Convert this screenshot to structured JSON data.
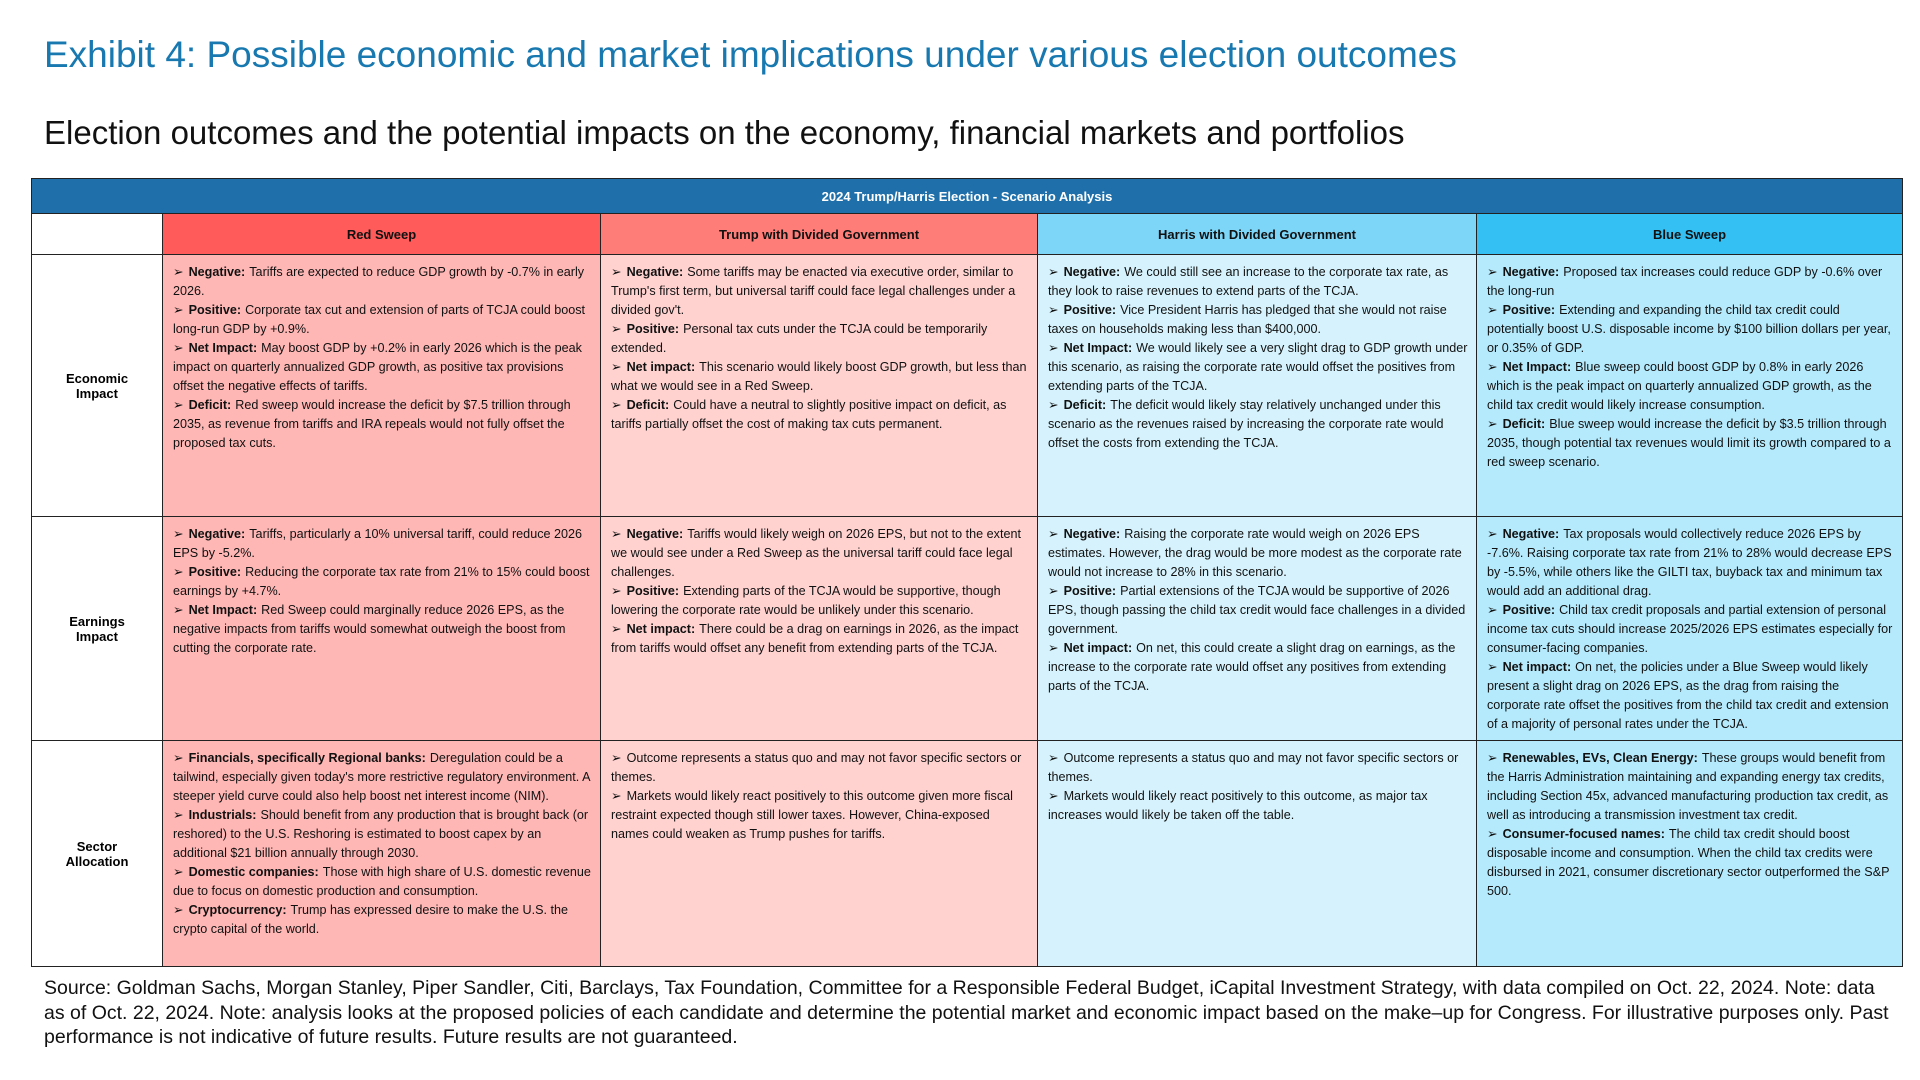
{
  "header": {
    "title": "Exhibit 4: Possible economic and market implications under various election outcomes",
    "subtitle": "Election outcomes and the potential impacts on the economy, financial markets and portfolios"
  },
  "table": {
    "caption": "2024 Trump/Harris Election - Scenario Analysis",
    "columns": [
      "Red Sweep",
      "Trump with Divided Government",
      "Harris with Divided Government",
      "Blue Sweep"
    ],
    "rows": [
      {
        "label": "Economic Impact",
        "cells": [
          [
            {
              "label": "Negative:",
              "text": "Tariffs are expected to reduce GDP growth by -0.7% in early 2026."
            },
            {
              "label": "Positive:",
              "text": "Corporate tax cut and extension of parts of TCJA could boost long-run GDP by +0.9%."
            },
            {
              "label": "Net Impact:",
              "text": "May boost GDP by +0.2% in early 2026 which is the peak impact on quarterly annualized GDP growth, as positive tax provisions offset the negative effects of tariffs."
            },
            {
              "label": "Deficit:",
              "text": "Red sweep would increase the deficit by $7.5 trillion through 2035, as revenue from tariffs and IRA repeals would not fully offset the proposed tax cuts."
            }
          ],
          [
            {
              "label": "Negative:",
              "text": "Some tariffs may be enacted via executive order, similar to Trump's first term, but universal tariff could face legal challenges under a divided gov't."
            },
            {
              "label": "Positive:",
              "text": "Personal tax cuts under the TCJA could be temporarily extended."
            },
            {
              "label": "Net impact:",
              "text": "This scenario would likely boost GDP growth, but less than what we would see in a Red Sweep."
            },
            {
              "label": "Deficit:",
              "text": "Could have a neutral to slightly positive impact on deficit, as tariffs partially offset the cost of making tax cuts permanent."
            }
          ],
          [
            {
              "label": "Negative:",
              "text": "We could still see an increase to the corporate tax rate, as they look to raise revenues to extend parts of the TCJA."
            },
            {
              "label": "Positive:",
              "text": "Vice President Harris has pledged that she would not raise taxes on households making less than $400,000."
            },
            {
              "label": "Net Impact:",
              "text": "We would likely see a very slight drag to GDP growth under this scenario, as raising the corporate rate would offset the positives from extending parts of the TCJA."
            },
            {
              "label": "Deficit:",
              "text": "The deficit would likely stay relatively unchanged under this scenario as the revenues raised by increasing the corporate rate would offset the costs from extending the TCJA."
            }
          ],
          [
            {
              "label": "Negative:",
              "text": "Proposed tax increases could reduce GDP by -0.6% over the long-run"
            },
            {
              "label": "Positive:",
              "text": "Extending and expanding the child tax credit could potentially boost U.S. disposable income by $100 billion dollars per year, or 0.35% of GDP."
            },
            {
              "label": "Net Impact:",
              "text": "Blue sweep could boost GDP by 0.8% in early 2026 which is the peak impact on quarterly annualized GDP growth, as the child tax credit would likely increase consumption."
            },
            {
              "label": "Deficit:",
              "text": "Blue sweep would increase the deficit by $3.5 trillion through 2035, though potential tax revenues would limit its growth compared to a red sweep scenario."
            }
          ]
        ]
      },
      {
        "label": "Earnings Impact",
        "cells": [
          [
            {
              "label": "Negative:",
              "text": "Tariffs, particularly a 10% universal tariff, could reduce 2026 EPS by -5.2%."
            },
            {
              "label": "Positive:",
              "text": "Reducing the corporate tax rate from 21% to 15% could boost earnings by +4.7%."
            },
            {
              "label": "Net Impact:",
              "text": "Red Sweep could marginally reduce 2026 EPS, as the negative impacts from tariffs would somewhat outweigh the boost from cutting the corporate rate."
            }
          ],
          [
            {
              "label": "Negative:",
              "text": "Tariffs would likely weigh on 2026 EPS, but not to the extent we would see under a Red Sweep as the universal tariff could face legal challenges."
            },
            {
              "label": "Positive:",
              "text": "Extending parts of the TCJA would be supportive, though lowering the corporate rate would be unlikely under this scenario."
            },
            {
              "label": "Net impact:",
              "text": "There could be a drag on earnings in 2026, as the impact from tariffs would offset any benefit from extending parts of the TCJA."
            }
          ],
          [
            {
              "label": "Negative:",
              "text": "Raising the corporate rate would weigh on 2026 EPS estimates. However, the drag would be more modest as the corporate rate would not increase to 28% in this scenario."
            },
            {
              "label": "Positive:",
              "text": "Partial extensions of the TCJA would be supportive of 2026 EPS, though passing the child tax credit would face challenges in a divided government."
            },
            {
              "label": "Net impact:",
              "text": "On net, this could create a slight drag on earnings, as the increase to the corporate rate would offset any positives from extending parts of the TCJA."
            }
          ],
          [
            {
              "label": "Negative:",
              "text": "Tax proposals would collectively reduce 2026 EPS by -7.6%. Raising corporate tax rate from 21% to 28% would decrease EPS by -5.5%, while others like the GILTI tax, buyback tax and minimum tax would add an additional drag."
            },
            {
              "label": "Positive:",
              "text": "Child tax credit proposals and partial extension of personal income tax cuts should increase 2025/2026 EPS estimates especially for consumer-facing companies."
            },
            {
              "label": "Net impact:",
              "text": "On net, the policies under a Blue Sweep would likely present a slight drag on 2026 EPS, as the drag from raising the corporate rate offset the positives from the child tax credit and extension of a majority of personal rates under the TCJA."
            }
          ]
        ]
      },
      {
        "label": "Sector Allocation",
        "cells": [
          [
            {
              "label": "Financials, specifically Regional banks:",
              "text": "Deregulation could be a tailwind, especially given today's more restrictive regulatory environment. A steeper yield curve could also help boost net interest income (NIM)."
            },
            {
              "label": "Industrials:",
              "text": "Should benefit from any production that is brought back (or reshored) to the U.S. Reshoring is estimated to boost capex by an additional $21 billion annually through 2030."
            },
            {
              "label": "Domestic companies:",
              "text": "Those with high share of U.S. domestic revenue due to focus on domestic production and consumption."
            },
            {
              "label": "Cryptocurrency:",
              "text": "Trump has expressed desire to make the U.S. the crypto capital of the world."
            }
          ],
          [
            {
              "text": "Outcome represents a status quo and may not favor specific sectors or themes."
            },
            {
              "text": "Markets would likely react positively to this outcome given more fiscal restraint expected though still lower taxes. However, China-exposed names could weaken as Trump pushes for tariffs."
            }
          ],
          [
            {
              "text": "Outcome represents a status quo and may not favor specific sectors or themes."
            },
            {
              "text": "Markets would likely react positively to this outcome, as major tax increases would likely be taken off the table."
            }
          ],
          [
            {
              "label": "Renewables, EVs, Clean Energy:",
              "text": "These groups would benefit from the Harris Administration maintaining and expanding energy tax credits, including Section 45x, advanced manufacturing production tax credit, as well as introducing a transmission investment tax credit."
            },
            {
              "label": "Consumer-focused names:",
              "text": "The child tax credit should boost disposable income and consumption. When the child tax credits were disbursed in 2021, consumer discretionary sector outperformed the S&P 500."
            }
          ]
        ]
      }
    ]
  },
  "footer": {
    "source": "Source: Goldman Sachs, Morgan Stanley, Piper Sandler, Citi, Barclays, Tax Foundation, Committee for a Responsible Federal Budget, iCapital Investment Strategy, with data compiled on Oct. 22, 2024. Note: data as of Oct. 22, 2024. Note: analysis looks at the proposed policies of each candidate and determine the potential market and economic impact based on the make–up for Congress. For illustrative purposes only. Past performance is not indicative of future results. Future results are not guaranteed."
  }
}
